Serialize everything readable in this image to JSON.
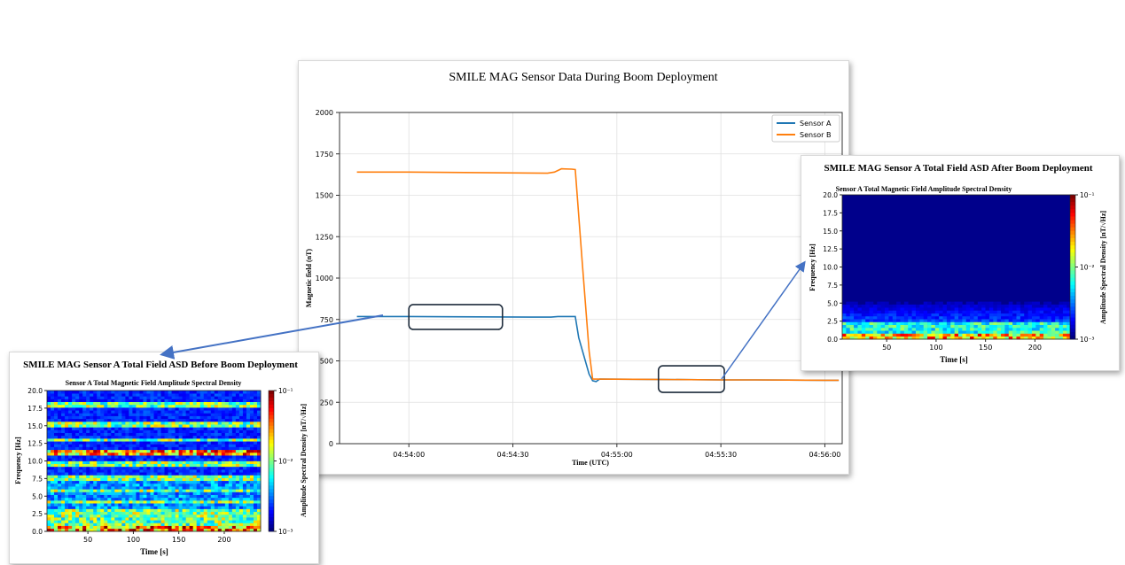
{
  "colors": {
    "sensor_a": "#1f77b4",
    "sensor_b": "#ff7f0e",
    "arrow": "#4472c4",
    "highlight_box": "#1f2d3d",
    "spectrogram_background": "#00008b"
  },
  "chart_data": [
    {
      "type": "line",
      "title": "SMILE MAG Sensor Data During Boom Deployment",
      "xlabel": "Time (UTC)",
      "ylabel": "Magnetic field (nT)",
      "ylim": [
        0,
        2000
      ],
      "x_axis_type": "time",
      "xlim": [
        "04:53:40",
        "04:56:05"
      ],
      "xticks": [
        "04:54:00",
        "04:54:30",
        "04:55:00",
        "04:55:30",
        "04:56:00"
      ],
      "yticks": [
        "0",
        "250",
        "500",
        "750",
        "1000",
        "1250",
        "1500",
        "1750",
        "2000"
      ],
      "grid": true,
      "legend_position": "top-right",
      "series": [
        {
          "name": "Sensor A",
          "color": "#1f77b4",
          "x": [
            "04:53:45",
            "04:54:00",
            "04:54:20",
            "04:54:35",
            "04:54:41",
            "04:54:43",
            "04:54:48",
            "04:54:49",
            "04:54:52",
            "04:54:53",
            "04:54:54",
            "04:54:55",
            "04:55:10",
            "04:55:30",
            "04:55:40",
            "04:56:00",
            "04:56:04"
          ],
          "values": [
            768,
            768,
            766,
            764,
            764,
            768,
            768,
            640,
            420,
            380,
            375,
            390,
            388,
            385,
            385,
            383,
            383
          ]
        },
        {
          "name": "Sensor B",
          "color": "#ff7f0e",
          "x": [
            "04:53:45",
            "04:54:00",
            "04:54:20",
            "04:54:40",
            "04:54:42",
            "04:54:44",
            "04:54:47",
            "04:54:48",
            "04:54:50",
            "04:54:52",
            "04:54:53",
            "04:54:54",
            "04:55:10",
            "04:55:30",
            "04:55:40",
            "04:56:00",
            "04:56:04"
          ],
          "values": [
            1640,
            1640,
            1637,
            1633,
            1640,
            1660,
            1658,
            1655,
            1100,
            560,
            390,
            390,
            388,
            385,
            385,
            383,
            383
          ]
        }
      ],
      "highlights": [
        {
          "x_range": [
            "04:54:00",
            "04:54:27"
          ],
          "y_range": [
            690,
            840
          ]
        },
        {
          "x_range": [
            "04:55:12",
            "04:55:31"
          ],
          "y_range": [
            310,
            470
          ]
        }
      ]
    },
    {
      "type": "heatmap",
      "title": "SMILE MAG Sensor A Total Field ASD After Boom Deployment",
      "subtitle": "Sensor A Total Magnetic Field Amplitude Spectral Density",
      "xlabel": "Time [s]",
      "ylabel": "Frequency [Hz]",
      "colorbar_label": "Amplitude Spectral Density [nT/√Hz]",
      "xlim": [
        5,
        240
      ],
      "ylim": [
        0,
        20
      ],
      "xticks": [
        "50",
        "100",
        "150",
        "200"
      ],
      "yticks": [
        "0.0",
        "2.5",
        "5.0",
        "7.5",
        "10.0",
        "12.5",
        "15.0",
        "17.5",
        "20.0"
      ],
      "colorbar_scale": "log",
      "colorbar_range": [
        0.001,
        0.1
      ],
      "colorbar_ticks": [
        "10⁻¹",
        "10⁻²",
        "10⁻³"
      ],
      "description_values": {
        "noise_band_hz": [
          0,
          6
        ],
        "high_power_band_hz": [
          0,
          1
        ]
      }
    },
    {
      "type": "heatmap",
      "title": "SMILE MAG Sensor A Total Field ASD Before Boom Deployment",
      "subtitle": "Sensor A Total Magnetic Field Amplitude Spectral Density",
      "xlabel": "Time [s]",
      "ylabel": "Frequency [Hz]",
      "colorbar_label": "Amplitude Spectral Density [nT/√Hz]",
      "xlim": [
        5,
        240
      ],
      "ylim": [
        0,
        20
      ],
      "xticks": [
        "50",
        "100",
        "150",
        "200"
      ],
      "yticks": [
        "0.0",
        "2.5",
        "5.0",
        "7.5",
        "10.0",
        "12.5",
        "15.0",
        "17.5",
        "20.0"
      ],
      "colorbar_scale": "log",
      "colorbar_range": [
        0.001,
        0.1
      ],
      "colorbar_ticks": [
        "10⁻¹",
        "10⁻²",
        "10⁻³"
      ],
      "lines_hz": [
        18.0,
        15.3,
        13.0,
        11.3,
        9.5,
        7.6,
        5.8,
        4.2,
        2.8
      ],
      "description_values": {
        "broadband_hz": [
          0,
          3
        ],
        "high_power_band_hz": [
          0,
          1
        ]
      }
    }
  ]
}
